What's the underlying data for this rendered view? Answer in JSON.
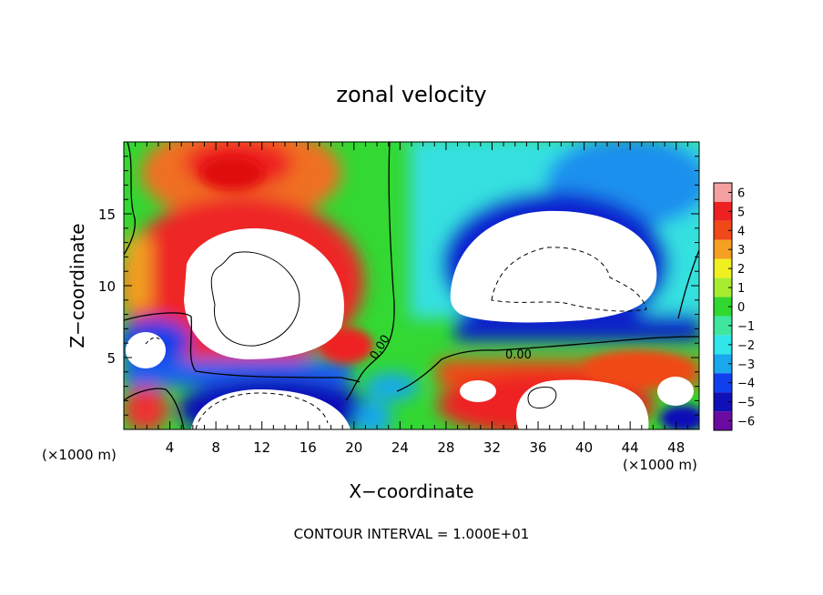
{
  "chart_data": {
    "type": "heatmap",
    "title": "zonal velocity",
    "xlabel": "X−coordinate",
    "ylabel": "Z−coordinate",
    "x_unit_left": "(×1000 m)",
    "x_unit_right": "(×1000 m)",
    "xlim": [
      0,
      50
    ],
    "ylim": [
      0,
      20
    ],
    "x_ticks": [
      4,
      8,
      12,
      16,
      20,
      24,
      28,
      32,
      36,
      40,
      44,
      48
    ],
    "x_tick_labels": [
      "4",
      "8",
      "12",
      "16",
      "20",
      "24",
      "28",
      "32",
      "36",
      "40",
      "44",
      "48"
    ],
    "y_ticks": [
      5,
      10,
      15
    ],
    "y_tick_labels": [
      "5",
      "10",
      "15"
    ],
    "colorbar": {
      "levels": [
        6,
        5,
        4,
        3,
        2,
        1,
        0,
        -1,
        -2,
        -3,
        -4,
        -5,
        -6
      ],
      "labels": [
        "6",
        "5",
        "4",
        "3",
        "2",
        "1",
        "0",
        "−1",
        "−2",
        "−3",
        "−4",
        "−5",
        "−6"
      ],
      "colors": [
        "#f4a0a0",
        "#ee2020",
        "#f04818",
        "#f5a020",
        "#f0f020",
        "#a8ec30",
        "#30d830",
        "#40e6a0",
        "#30e6ea",
        "#18a8ee",
        "#1040ee",
        "#1010b8",
        "#6a0aa0"
      ]
    },
    "contour_labels": [
      "0.00",
      "0.00"
    ],
    "footer": "CONTOUR INTERVAL = 1.000E+01",
    "features": [
      {
        "sign": "positive",
        "center": [
          10.5,
          10.5
        ],
        "peak": "> 6"
      },
      {
        "sign": "positive",
        "center": [
          10.5,
          18
        ],
        "peak": 5
      },
      {
        "sign": "negative",
        "center": [
          38,
          11
        ],
        "peak": "< -6"
      },
      {
        "sign": "negative",
        "center": [
          12,
          1.5
        ],
        "peak": "< -6"
      },
      {
        "sign": "positive",
        "center": [
          35.5,
          2.2
        ],
        "peak": "> 6"
      }
    ]
  }
}
